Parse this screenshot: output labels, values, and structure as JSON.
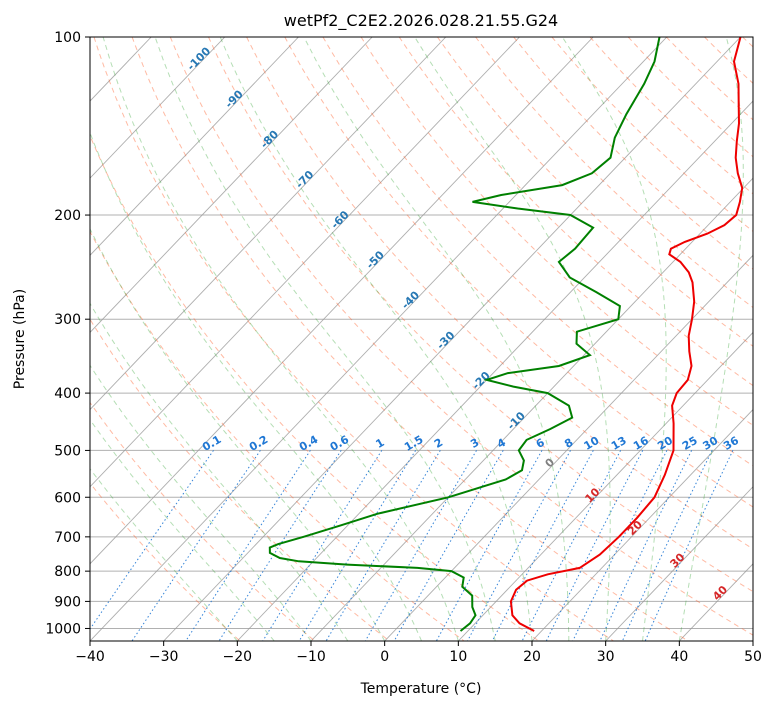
{
  "chart_data": {
    "type": "line",
    "title": "wetPf2_C2E2.2026.028.21.55.G24",
    "xlabel": "Temperature (°C)",
    "ylabel": "Pressure (hPa)",
    "xlim": [
      -40,
      50
    ],
    "ylim": [
      1050,
      100
    ],
    "y_scale": "log",
    "grid": true,
    "x_ticks": [
      "−40",
      "−30",
      "−20",
      "−10",
      "0",
      "10",
      "20",
      "30",
      "40",
      "50"
    ],
    "x_tick_values": [
      -40,
      -30,
      -20,
      -10,
      0,
      10,
      20,
      30,
      40,
      50
    ],
    "y_ticks": [
      "100",
      "200",
      "300",
      "400",
      "500",
      "600",
      "700",
      "800",
      "900",
      "1000"
    ],
    "y_tick_values": [
      100,
      200,
      300,
      400,
      500,
      600,
      700,
      800,
      900,
      1000
    ],
    "series": [
      {
        "color": "#ee0000",
        "points": [
          [
            1010,
            19.0
          ],
          [
            980,
            16.0
          ],
          [
            950,
            14.0
          ],
          [
            900,
            12.0
          ],
          [
            860,
            11.2
          ],
          [
            830,
            11.5
          ],
          [
            810,
            13.5
          ],
          [
            790,
            17.0
          ],
          [
            750,
            18.0
          ],
          [
            700,
            18.3
          ],
          [
            650,
            18.3
          ],
          [
            600,
            18.0
          ],
          [
            550,
            16.5
          ],
          [
            500,
            14.5
          ],
          [
            450,
            11.0
          ],
          [
            420,
            8.5
          ],
          [
            400,
            7.5
          ],
          [
            380,
            7.3
          ],
          [
            360,
            6.0
          ],
          [
            340,
            3.8
          ],
          [
            320,
            1.7
          ],
          [
            300,
            0.0
          ],
          [
            280,
            -2.0
          ],
          [
            260,
            -4.7
          ],
          [
            250,
            -6.5
          ],
          [
            240,
            -9.0
          ],
          [
            233,
            -11.5
          ],
          [
            228,
            -12.0
          ],
          [
            222,
            -11.0
          ],
          [
            215,
            -9.0
          ],
          [
            208,
            -7.8
          ],
          [
            200,
            -7.5
          ],
          [
            190,
            -8.7
          ],
          [
            180,
            -10.2
          ],
          [
            170,
            -12.7
          ],
          [
            160,
            -15.0
          ],
          [
            150,
            -17.0
          ],
          [
            140,
            -19.0
          ],
          [
            130,
            -21.5
          ],
          [
            120,
            -24.2
          ],
          [
            110,
            -27.7
          ],
          [
            100,
            -30.0
          ]
        ]
      },
      {
        "color": "#008000",
        "points": [
          [
            1010,
            9.0
          ],
          [
            980,
            9.3
          ],
          [
            950,
            9.0
          ],
          [
            920,
            7.5
          ],
          [
            880,
            6.0
          ],
          [
            850,
            3.5
          ],
          [
            820,
            2.5
          ],
          [
            800,
            0.0
          ],
          [
            790,
            -5.0
          ],
          [
            780,
            -15.0
          ],
          [
            770,
            -22.0
          ],
          [
            760,
            -25.0
          ],
          [
            745,
            -27.0
          ],
          [
            730,
            -27.7
          ],
          [
            720,
            -27.0
          ],
          [
            700,
            -24.5
          ],
          [
            670,
            -21.0
          ],
          [
            640,
            -17.5
          ],
          [
            600,
            -10.0
          ],
          [
            560,
            -4.5
          ],
          [
            540,
            -3.5
          ],
          [
            520,
            -4.5
          ],
          [
            500,
            -6.5
          ],
          [
            480,
            -6.8
          ],
          [
            460,
            -5.0
          ],
          [
            440,
            -3.5
          ],
          [
            420,
            -5.5
          ],
          [
            400,
            -10.0
          ],
          [
            390,
            -15.5
          ],
          [
            380,
            -20.0
          ],
          [
            370,
            -18.0
          ],
          [
            360,
            -12.0
          ],
          [
            345,
            -9.2
          ],
          [
            330,
            -12.5
          ],
          [
            315,
            -14.0
          ],
          [
            300,
            -10.0
          ],
          [
            285,
            -11.5
          ],
          [
            270,
            -16.5
          ],
          [
            255,
            -22.0
          ],
          [
            240,
            -25.5
          ],
          [
            228,
            -25.0
          ],
          [
            210,
            -25.3
          ],
          [
            200,
            -30.0
          ],
          [
            195,
            -38.0
          ],
          [
            190,
            -45.0
          ],
          [
            185,
            -42.0
          ],
          [
            178,
            -35.0
          ],
          [
            170,
            -32.5
          ],
          [
            160,
            -32.0
          ],
          [
            148,
            -34.0
          ],
          [
            135,
            -35.5
          ],
          [
            120,
            -37.0
          ],
          [
            110,
            -38.5
          ],
          [
            100,
            -41.0
          ]
        ]
      }
    ],
    "background_lines": {
      "dry_adiabats": {
        "color": "#ff6633",
        "theta_start_K": 250,
        "theta_end_K": 500,
        "step_K": 10
      },
      "moist_adiabats": {
        "color": "#2ca02c",
        "start_C": -20,
        "end_C": 40,
        "step_C": 5
      },
      "isotherms": {
        "color": "#707070",
        "step_C": 10
      },
      "mixing_ratio": {
        "color": "#1f77d4",
        "values": [
          0.1,
          0.2,
          0.4,
          0.6,
          1,
          1.5,
          2,
          3,
          4,
          6,
          8,
          10,
          13,
          16,
          20,
          25,
          30,
          36
        ],
        "labels": [
          "0.1",
          "0.2",
          "0.4",
          "0.6",
          "1",
          "1.5",
          "2",
          "3",
          "4",
          "6",
          "8",
          "10",
          "13",
          "16",
          "20",
          "25",
          "30",
          "36"
        ],
        "label_pressure_hPa": 500
      },
      "isotherm_labels": {
        "color": "#2778b4",
        "values": [
          -100,
          -90,
          -80,
          -70,
          -60,
          -50,
          -40,
          -30,
          -20,
          -10
        ],
        "labels": [
          "-100",
          "-90",
          "-80",
          "-70",
          "-60",
          "-50",
          "-40",
          "-30",
          "-20",
          "-10"
        ]
      },
      "warm_isotherm_labels": {
        "values": [
          0,
          10,
          20,
          30,
          40
        ],
        "labels": [
          "0",
          "10",
          "20",
          "30",
          "40"
        ],
        "colors": [
          "#808080",
          "#d62728",
          "#d62728",
          "#d62728",
          "#d62728"
        ]
      }
    }
  }
}
